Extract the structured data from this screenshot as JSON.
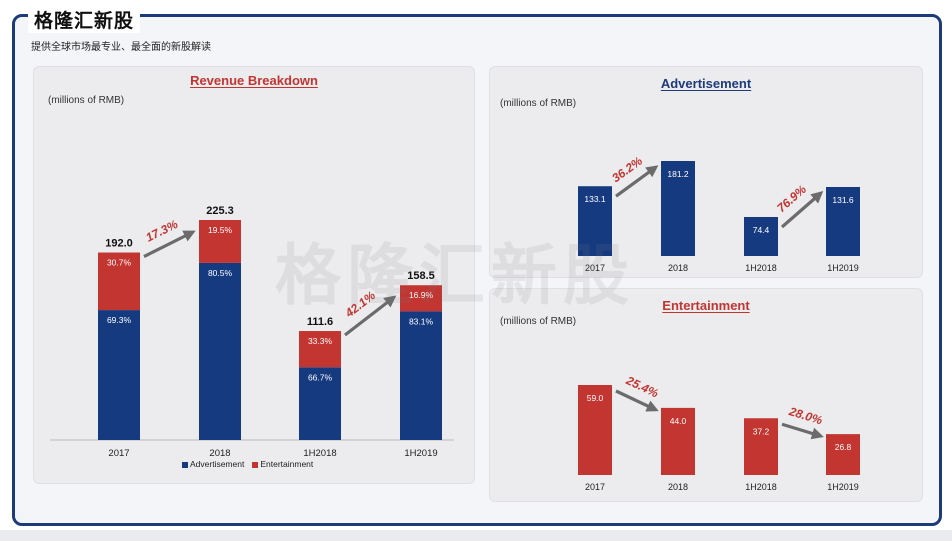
{
  "header": {
    "brand": "格隆汇新股",
    "subtitle": "提供全球市场最专业、最全面的新股解读",
    "watermark": "格隆汇新股"
  },
  "colors": {
    "advertisement": "#163a80",
    "entertainment": "#c23531",
    "arrow": "#6b6b6b",
    "growth_text": "#c23531",
    "title_blue": "#1d3a7a",
    "title_red": "#c23531"
  },
  "chart_data": [
    {
      "type": "bar",
      "stacked": true,
      "title": "Revenue Breakdown",
      "unit_label": "(millions of RMB)",
      "categories": [
        "2017",
        "2018",
        "1H2018",
        "1H2019"
      ],
      "totals": [
        192.0,
        225.3,
        111.6,
        158.5
      ],
      "total_labels": [
        "192.0",
        "225.3",
        "111.6",
        "158.5"
      ],
      "series": [
        {
          "name": "Advertisement",
          "share_labels": [
            "69.3%",
            "80.5%",
            "66.7%",
            "83.1%"
          ],
          "shares": [
            69.3,
            80.5,
            66.7,
            83.1
          ]
        },
        {
          "name": "Entertainment",
          "share_labels": [
            "30.7%",
            "19.5%",
            "33.3%",
            "16.9%"
          ],
          "shares": [
            30.7,
            19.5,
            33.3,
            16.9
          ]
        }
      ],
      "growth": [
        {
          "from": 0,
          "to": 1,
          "label": "17.3%"
        },
        {
          "from": 2,
          "to": 3,
          "label": "42.1%"
        }
      ],
      "legend": [
        "Advertisement",
        "Entertainment"
      ],
      "legend_position": "bottom",
      "ylim": [
        0,
        225.3
      ]
    },
    {
      "type": "bar",
      "title": "Advertisement",
      "unit_label": "(millions of RMB)",
      "categories": [
        "2017",
        "2018",
        "1H2018",
        "1H2019"
      ],
      "values": [
        133.1,
        181.2,
        74.4,
        131.6
      ],
      "value_labels": [
        "133.1",
        "181.2",
        "74.4",
        "131.6"
      ],
      "growth": [
        {
          "from": 0,
          "to": 1,
          "label": "36.2%"
        },
        {
          "from": 2,
          "to": 3,
          "label": "76.9%"
        }
      ],
      "ylim": [
        0,
        181.2
      ]
    },
    {
      "type": "bar",
      "title": "Entertainment",
      "unit_label": "(millions of RMB)",
      "categories": [
        "2017",
        "2018",
        "1H2018",
        "1H2019"
      ],
      "values": [
        59.0,
        44.0,
        37.2,
        26.8
      ],
      "value_labels": [
        "59.0",
        "44.0",
        "37.2",
        "26.8"
      ],
      "growth": [
        {
          "from": 0,
          "to": 1,
          "label": "25.4%"
        },
        {
          "from": 2,
          "to": 3,
          "label": "28.0%"
        }
      ],
      "ylim": [
        0,
        59.0
      ]
    }
  ]
}
